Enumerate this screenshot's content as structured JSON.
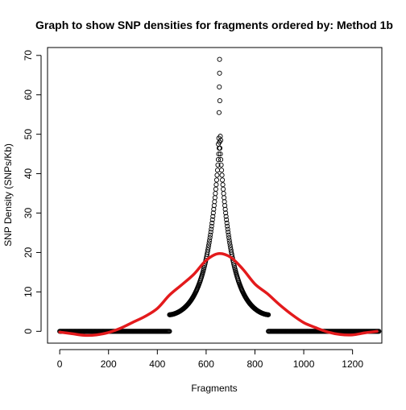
{
  "chart_data": {
    "type": "scatter",
    "title": "Graph to show SNP densities for fragments ordered by: Method 1b",
    "xlabel": "Fragments",
    "ylabel": "SNP Density (SNPs/Kb)",
    "xlim": [
      -50,
      1320
    ],
    "ylim": [
      -3,
      72
    ],
    "x_ticks": [
      0,
      200,
      400,
      600,
      800,
      1000,
      1200
    ],
    "y_ticks": [
      0,
      10,
      20,
      30,
      40,
      50,
      60,
      70
    ],
    "grid": false,
    "legend": "none",
    "colors": {
      "points": "#000000",
      "smooth_line": "#e31a1c"
    },
    "series": [
      {
        "kind": "points",
        "marker": "open-circle",
        "segments": [
          {
            "x_range": [
              0,
              450
            ],
            "y": 0
          },
          {
            "x_range": [
              450,
              655
            ],
            "curve": "rising",
            "y_start": 4.2,
            "y_end": 48
          },
          {
            "x_range": [
              655,
              855
            ],
            "curve": "falling",
            "y_start": 48,
            "y_end": 4.2
          },
          {
            "x_range": [
              855,
              1308
            ],
            "y": 0
          }
        ],
        "peak_points": [
          {
            "x": 655,
            "y": 69
          },
          {
            "x": 655,
            "y": 65.5
          },
          {
            "x": 654,
            "y": 62
          },
          {
            "x": 656,
            "y": 58.5
          },
          {
            "x": 653,
            "y": 55.5
          },
          {
            "x": 658,
            "y": 49.5
          },
          {
            "x": 652,
            "y": 49
          },
          {
            "x": 660,
            "y": 48.5
          },
          {
            "x": 650,
            "y": 47.5
          }
        ]
      },
      {
        "kind": "line",
        "x": [
          0,
          50,
          100,
          150,
          200,
          250,
          300,
          350,
          400,
          450,
          500,
          550,
          600,
          650,
          700,
          750,
          800,
          850,
          900,
          950,
          1000,
          1050,
          1100,
          1150,
          1200,
          1250,
          1300
        ],
        "y": [
          -0.2,
          -0.6,
          -1.0,
          -0.9,
          -0.3,
          0.8,
          2.3,
          3.8,
          5.8,
          9.2,
          11.8,
          14.5,
          18.0,
          19.7,
          18.8,
          15.8,
          12.0,
          9.6,
          6.8,
          4.3,
          2.2,
          0.9,
          -0.2,
          -0.8,
          -0.9,
          -0.4,
          0.0
        ]
      }
    ]
  }
}
